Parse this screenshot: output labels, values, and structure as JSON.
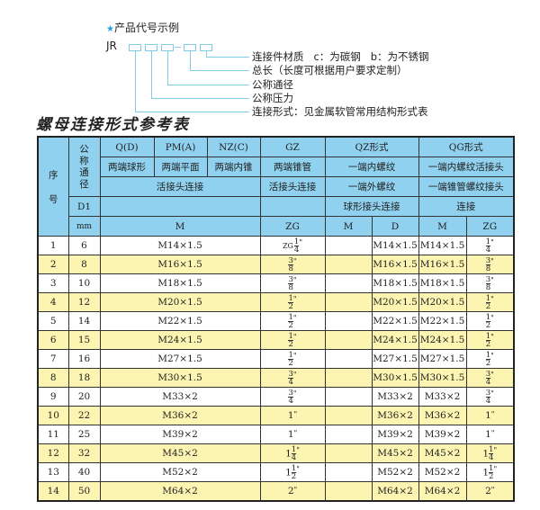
{
  "diagram": {
    "title": "产品代号示例",
    "star_icon": "star-icon",
    "code_prefix": "JR",
    "code_dash": "-",
    "labels": [
      "连接件材质   c：为碳钢   b：为不锈钢",
      "总长（长度可根据用户要求定制）",
      "公称通径",
      "公称压力",
      "连接形式：见金属软管常用结构形式表"
    ]
  },
  "heading": "螺母连接形式参考表",
  "header": {
    "seq": "序\n\n号",
    "nominal": "公称通径",
    "d1": "D1",
    "mm": "mm",
    "qd": "Q(D)",
    "pm": "PM(A)",
    "nz": "NZ(C)",
    "gz": "GZ",
    "qz": "QZ形式",
    "qg": "QG形式",
    "qd_desc": "两端球形",
    "pm_desc": "两端平面",
    "nz_desc": "两端内锥",
    "gz_desc": "两端锥管",
    "qz_desc1": "一端内螺纹",
    "qg_desc1": "一端内螺纹活接头",
    "union": "活接头连接",
    "gz_union": "活接头连接",
    "qz_desc2": "一端外螺纹",
    "qg_desc2": "一端锥管螺纹接头",
    "qz_desc3": "球形接头连接",
    "qg_desc3": "连接",
    "m": "M",
    "zg": "ZG",
    "qz_m": "M",
    "qz_d": "D",
    "qg_m": "M",
    "qg_zg": "ZG"
  },
  "colors": {
    "header_bg": "#8fd1ee",
    "alt_row_bg": "#fcf5b2",
    "line": "#7fcbe8"
  },
  "rows": [
    {
      "seq": "1",
      "d1": "6",
      "m": "M14×1.5",
      "zg": {
        "prefix": "ZG",
        "whole": "",
        "num": "1",
        "den": "4"
      },
      "qz_m": "",
      "qz_d": "M14×1.5",
      "qg_m": "M14×1.5",
      "qg_zg": {
        "whole": "",
        "num": "1",
        "den": "4"
      }
    },
    {
      "seq": "2",
      "d1": "8",
      "m": "M16×1.5",
      "zg": {
        "whole": "",
        "num": "3",
        "den": "8"
      },
      "qz_m": "",
      "qz_d": "M16×1.5",
      "qg_m": "M16×1.5",
      "qg_zg": {
        "whole": "",
        "num": "3",
        "den": "8"
      }
    },
    {
      "seq": "3",
      "d1": "10",
      "m": "M18×1.5",
      "zg": {
        "whole": "",
        "num": "3",
        "den": "8"
      },
      "qz_m": "",
      "qz_d": "M18×1.5",
      "qg_m": "M18×1.5",
      "qg_zg": {
        "whole": "",
        "num": "3",
        "den": "8"
      }
    },
    {
      "seq": "4",
      "d1": "12",
      "m": "M20×1.5",
      "zg": {
        "whole": "",
        "num": "1",
        "den": "2"
      },
      "qz_m": "",
      "qz_d": "M20×1.5",
      "qg_m": "M20×1.5",
      "qg_zg": {
        "whole": "",
        "num": "1",
        "den": "2"
      }
    },
    {
      "seq": "5",
      "d1": "14",
      "m": "M22×1.5",
      "zg": {
        "whole": "",
        "num": "1",
        "den": "2"
      },
      "qz_m": "",
      "qz_d": "M22×1.5",
      "qg_m": "M22×1.5",
      "qg_zg": {
        "whole": "",
        "num": "1",
        "den": "2"
      }
    },
    {
      "seq": "6",
      "d1": "15",
      "m": "M24×1.5",
      "zg": {
        "whole": "",
        "num": "1",
        "den": "2"
      },
      "qz_m": "",
      "qz_d": "M24×1.5",
      "qg_m": "M24×1.5",
      "qg_zg": {
        "whole": "",
        "num": "1",
        "den": "2"
      }
    },
    {
      "seq": "7",
      "d1": "16",
      "m": "M27×1.5",
      "zg": {
        "whole": "",
        "num": "1",
        "den": "2"
      },
      "qz_m": "",
      "qz_d": "M27×1.5",
      "qg_m": "M27×1.5",
      "qg_zg": {
        "whole": "",
        "num": "1",
        "den": "2"
      }
    },
    {
      "seq": "8",
      "d1": "18",
      "m": "M30×1.5",
      "zg": {
        "whole": "",
        "num": "3",
        "den": "4"
      },
      "qz_m": "",
      "qz_d": "M30×1.5",
      "qg_m": "M30×1.5",
      "qg_zg": {
        "whole": "",
        "num": "3",
        "den": "4"
      }
    },
    {
      "seq": "9",
      "d1": "20",
      "m": "M33×2",
      "zg": {
        "whole": "",
        "num": "3",
        "den": "4"
      },
      "qz_m": "",
      "qz_d": "M33×2",
      "qg_m": "M33×2",
      "qg_zg": {
        "whole": "",
        "num": "3",
        "den": "4"
      }
    },
    {
      "seq": "10",
      "d1": "22",
      "m": "M36×2",
      "zg": {
        "whole": "1"
      },
      "qz_m": "",
      "qz_d": "M36×2",
      "qg_m": "M36×2",
      "qg_zg": {
        "whole": "1"
      }
    },
    {
      "seq": "11",
      "d1": "25",
      "m": "M39×2",
      "zg": {
        "whole": "1"
      },
      "qz_m": "",
      "qz_d": "M39×2",
      "qg_m": "M39×2",
      "qg_zg": {
        "whole": "1"
      }
    },
    {
      "seq": "12",
      "d1": "32",
      "m": "M45×2",
      "zg": {
        "whole": "1",
        "num": "1",
        "den": "4"
      },
      "qz_m": "",
      "qz_d": "M45×2",
      "qg_m": "M45×2",
      "qg_zg": {
        "whole": "1",
        "num": "1",
        "den": "4"
      }
    },
    {
      "seq": "13",
      "d1": "40",
      "m": "M52×2",
      "zg": {
        "whole": "1",
        "num": "1",
        "den": "2"
      },
      "qz_m": "",
      "qz_d": "M52×2",
      "qg_m": "M52×2",
      "qg_zg": {
        "whole": "1",
        "num": "1",
        "den": "2"
      }
    },
    {
      "seq": "14",
      "d1": "50",
      "m": "M64×2",
      "zg": {
        "whole": "2"
      },
      "qz_m": "",
      "qz_d": "M64×2",
      "qg_m": "M64×2",
      "qg_zg": {
        "whole": "2"
      }
    }
  ],
  "inch_mark": "\""
}
